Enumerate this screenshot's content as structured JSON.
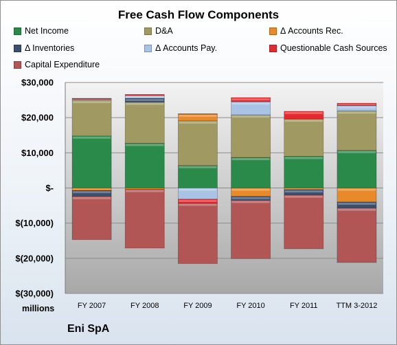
{
  "colors": {
    "net_income": "#2a8a4a",
    "da": "#a09a62",
    "accounts_rec": "#e8892a",
    "inventories": "#3a4f6e",
    "accounts_pay": "#a9c3e4",
    "questionable": "#e32b2f",
    "capex": "#b25555",
    "plot_bg_top": "#f3f3f3",
    "plot_bg_bottom": "#a8a8a8"
  },
  "footer": {
    "company": "Eni SpA"
  },
  "chart_data": {
    "type": "bar",
    "stacked": true,
    "title": "Free Cash Flow Components",
    "units_label": "millions",
    "categories": [
      "FY 2007",
      "FY 2008",
      "FY 2009",
      "FY 2010",
      "FY 2011",
      "TTM 3-2012"
    ],
    "ylim": [
      -30000,
      30000
    ],
    "yticks": [
      30000,
      20000,
      10000,
      0,
      -10000,
      -20000,
      -30000
    ],
    "ytick_labels": [
      "$30,000",
      "$20,000",
      "$10,000",
      "$-",
      "$(10,000)",
      "$(20,000)",
      "$(30,000)"
    ],
    "grid": true,
    "legend_position": "top",
    "series": [
      {
        "name": "Net Income",
        "color_key": "net_income",
        "values": [
          14800,
          12700,
          6400,
          8700,
          9000,
          10700
        ]
      },
      {
        "name": "D&A",
        "color_key": "da",
        "values": [
          10100,
          11700,
          12700,
          12100,
          10600,
          11200
        ]
      },
      {
        "name": "Δ Accounts Rec.",
        "color_key": "accounts_rec",
        "values": [
          -700,
          -400,
          1900,
          -2400,
          -500,
          -4000
        ]
      },
      {
        "name": "Δ Inventories",
        "color_key": "inventories",
        "values": [
          -1700,
          1100,
          100,
          -1100,
          -1500,
          -1700
        ]
      },
      {
        "name": "Δ Accounts Pay.",
        "color_key": "accounts_pay",
        "values": [
          300,
          800,
          -3200,
          3700,
          0,
          1500
        ]
      },
      {
        "name": "Questionable Cash Sources",
        "color_key": "questionable",
        "values": [
          300,
          300,
          -1100,
          1200,
          2200,
          700
        ]
      },
      {
        "name": "Capital Expenditure",
        "color_key": "capex",
        "values": [
          -12300,
          -16700,
          -17200,
          -16600,
          -15300,
          -15500
        ]
      }
    ]
  }
}
